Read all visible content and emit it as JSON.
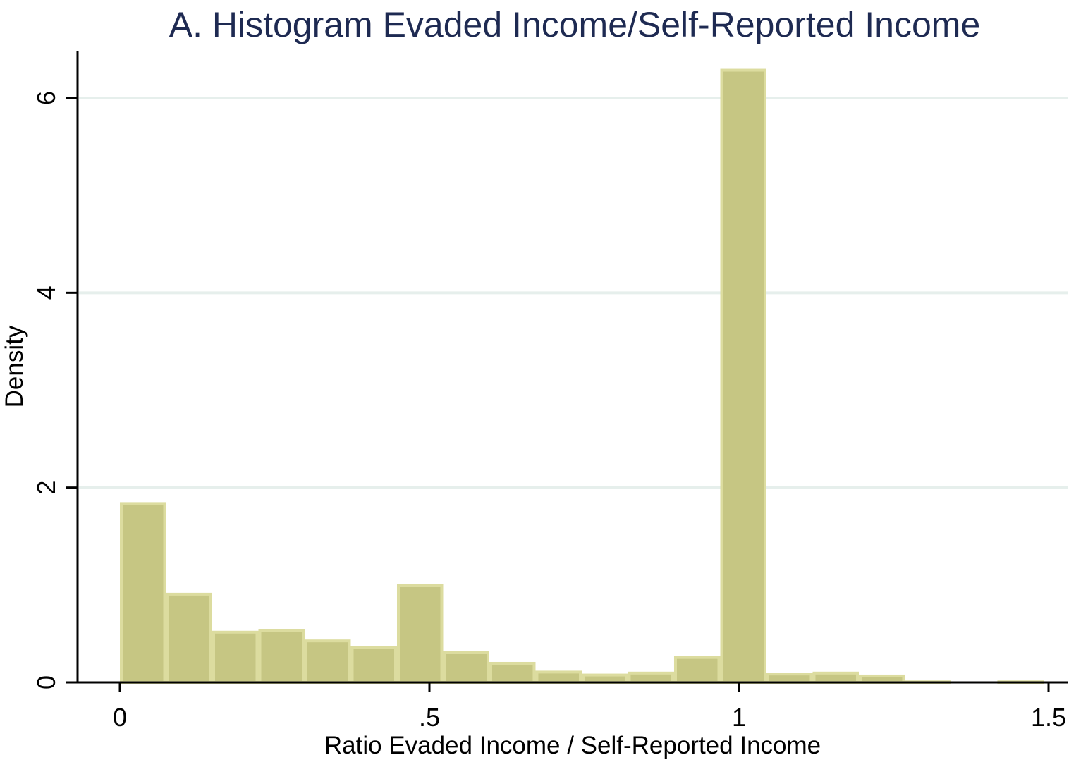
{
  "chart_data": {
    "type": "bar",
    "subtype": "histogram",
    "title": "A. Histogram Evaded Income/Self-Reported Income",
    "xlabel": "Ratio Evaded Income / Self-Reported Income",
    "ylabel": "Density",
    "xlim": [
      -0.08,
      1.51
    ],
    "ylim": [
      0,
      6.5
    ],
    "bin_width": 0.0746,
    "x_ticks": [
      {
        "value": 0,
        "label": "0"
      },
      {
        "value": 0.5,
        "label": ".5"
      },
      {
        "value": 1,
        "label": "1"
      },
      {
        "value": 1.5,
        "label": "1.5"
      }
    ],
    "y_ticks": [
      {
        "value": 0,
        "label": "0"
      },
      {
        "value": 2,
        "label": "2"
      },
      {
        "value": 4,
        "label": "4"
      },
      {
        "value": 6,
        "label": "6"
      }
    ],
    "grid": true,
    "bins": [
      {
        "x0": 0.0,
        "density": 1.85
      },
      {
        "x0": 0.0746,
        "density": 0.92
      },
      {
        "x0": 0.1492,
        "density": 0.53
      },
      {
        "x0": 0.2238,
        "density": 0.55
      },
      {
        "x0": 0.2984,
        "density": 0.44
      },
      {
        "x0": 0.373,
        "density": 0.37
      },
      {
        "x0": 0.4476,
        "density": 1.01
      },
      {
        "x0": 0.5222,
        "density": 0.32
      },
      {
        "x0": 0.5968,
        "density": 0.21
      },
      {
        "x0": 0.6714,
        "density": 0.12
      },
      {
        "x0": 0.746,
        "density": 0.09
      },
      {
        "x0": 0.8206,
        "density": 0.11
      },
      {
        "x0": 0.8952,
        "density": 0.27
      },
      {
        "x0": 0.9698,
        "density": 6.3
      },
      {
        "x0": 1.0444,
        "density": 0.1
      },
      {
        "x0": 1.119,
        "density": 0.11
      },
      {
        "x0": 1.1936,
        "density": 0.08
      },
      {
        "x0": 1.2682,
        "density": 0.02
      },
      {
        "x0": 1.3428,
        "density": 0.0
      },
      {
        "x0": 1.4174,
        "density": 0.02
      }
    ]
  },
  "colors": {
    "title": "#1e2a52",
    "bar_fill": "#c6c683",
    "bar_edge": "#dcdc9f",
    "grid": "#e6efec",
    "axis": "#000000"
  }
}
